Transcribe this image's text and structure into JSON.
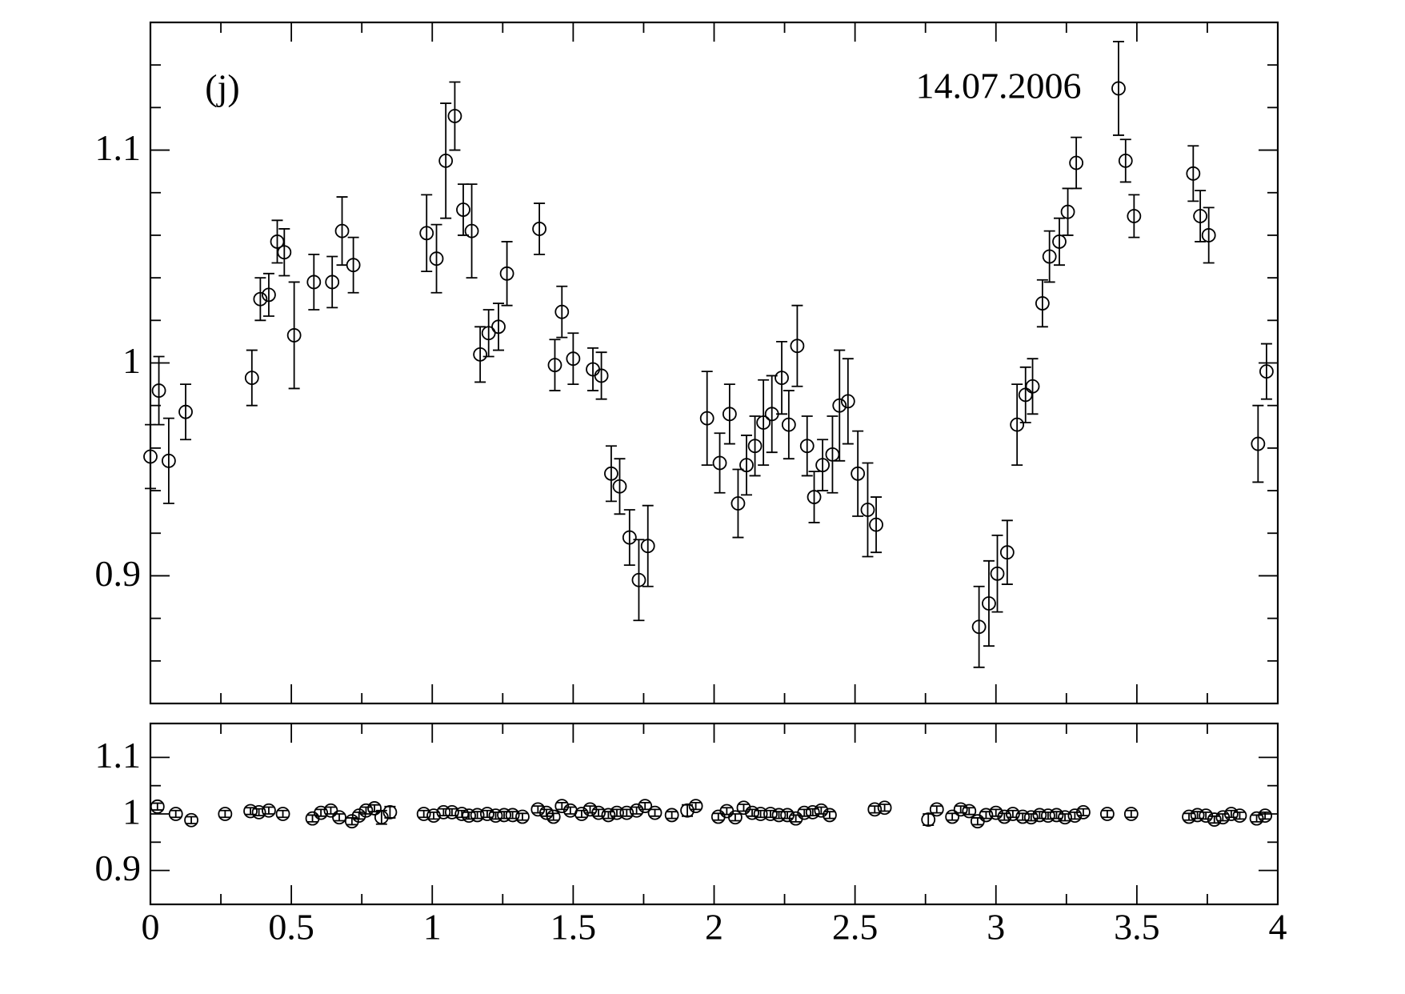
{
  "chart_data": [
    {
      "type": "scatter",
      "annotations": [
        "(j)",
        "14.07.2006"
      ],
      "xlim": [
        0,
        4
      ],
      "ylim": [
        0.84,
        1.16
      ],
      "xticks": [
        0,
        0.5,
        1,
        1.5,
        2,
        2.5,
        3,
        3.5,
        4
      ],
      "x_minor_ticks": [
        0.25,
        0.75,
        1.25,
        1.75,
        2.25,
        2.75,
        3.25,
        3.75
      ],
      "yticks": [
        0.9,
        1,
        1.1
      ],
      "y_minor_ticks": [
        0.86,
        0.88,
        0.92,
        0.94,
        0.96,
        0.98,
        1.02,
        1.04,
        1.06,
        1.08,
        1.12,
        1.14
      ],
      "color": "#000000",
      "series": [
        {
          "x": [
            0,
            0.03,
            0.065,
            0.125,
            0.36,
            0.39,
            0.42,
            0.45,
            0.475,
            0.51,
            0.58,
            0.645,
            0.68,
            0.72,
            0.98,
            1.015,
            1.048,
            1.08,
            1.11,
            1.14,
            1.17,
            1.2,
            1.235,
            1.265,
            1.38,
            1.435,
            1.46,
            1.5,
            1.57,
            1.6,
            1.635,
            1.665,
            1.7,
            1.733,
            1.765,
            1.975,
            2.02,
            2.055,
            2.085,
            2.115,
            2.145,
            2.175,
            2.205,
            2.24,
            2.265,
            2.295,
            2.33,
            2.355,
            2.385,
            2.42,
            2.445,
            2.475,
            2.51,
            2.545,
            2.575,
            2.94,
            2.975,
            3.005,
            3.04,
            3.075,
            3.105,
            3.13,
            3.165,
            3.19,
            3.225,
            3.255,
            3.285,
            3.435,
            3.46,
            3.49,
            3.7,
            3.725,
            3.755,
            3.93,
            3.96
          ],
          "values": [
            0.956,
            0.987,
            0.954,
            0.977,
            0.993,
            1.03,
            1.032,
            1.057,
            1.052,
            1.013,
            1.038,
            1.038,
            1.062,
            1.046,
            1.061,
            1.049,
            1.095,
            1.116,
            1.072,
            1.062,
            1.004,
            1.014,
            1.017,
            1.042,
            1.063,
            0.999,
            1.024,
            1.002,
            0.997,
            0.994,
            0.948,
            0.942,
            0.918,
            0.898,
            0.914,
            0.974,
            0.953,
            0.976,
            0.934,
            0.952,
            0.961,
            0.972,
            0.976,
            0.993,
            0.971,
            1.008,
            0.961,
            0.937,
            0.952,
            0.957,
            0.98,
            0.982,
            0.948,
            0.931,
            0.924,
            0.876,
            0.887,
            0.901,
            0.911,
            0.971,
            0.985,
            0.989,
            1.028,
            1.05,
            1.057,
            1.071,
            1.094,
            1.129,
            1.095,
            1.069,
            1.089,
            1.069,
            1.06,
            0.962,
            0.996
          ],
          "errors": [
            0.015,
            0.016,
            0.02,
            0.013,
            0.013,
            0.01,
            0.01,
            0.01,
            0.011,
            0.025,
            0.013,
            0.012,
            0.016,
            0.013,
            0.018,
            0.016,
            0.027,
            0.016,
            0.012,
            0.022,
            0.013,
            0.011,
            0.011,
            0.015,
            0.012,
            0.012,
            0.012,
            0.012,
            0.01,
            0.011,
            0.013,
            0.013,
            0.013,
            0.019,
            0.019,
            0.022,
            0.014,
            0.014,
            0.016,
            0.014,
            0.014,
            0.02,
            0.018,
            0.017,
            0.016,
            0.019,
            0.014,
            0.012,
            0.012,
            0.018,
            0.026,
            0.02,
            0.02,
            0.022,
            0.013,
            0.019,
            0.02,
            0.018,
            0.015,
            0.019,
            0.013,
            0.013,
            0.011,
            0.012,
            0.011,
            0.011,
            0.012,
            0.022,
            0.01,
            0.01,
            0.013,
            0.012,
            0.013,
            0.018,
            0.013
          ]
        }
      ]
    },
    {
      "type": "scatter",
      "xlim": [
        0,
        4
      ],
      "ylim": [
        0.84,
        1.16
      ],
      "xticks": [
        0,
        0.5,
        1,
        1.5,
        2,
        2.5,
        3,
        3.5,
        4
      ],
      "x_minor_ticks": [
        0.25,
        0.75,
        1.25,
        1.75,
        2.25,
        2.75,
        3.25,
        3.75
      ],
      "yticks": [
        0.9,
        1,
        1.1
      ],
      "y_minor_ticks": [
        0.95,
        1.05
      ],
      "color": "#000000",
      "series": [
        {
          "x": [
            0.025,
            0.09,
            0.145,
            0.265,
            0.355,
            0.385,
            0.42,
            0.47,
            0.575,
            0.605,
            0.64,
            0.67,
            0.715,
            0.74,
            0.765,
            0.795,
            0.82,
            0.85,
            0.97,
            1.005,
            1.04,
            1.07,
            1.105,
            1.13,
            1.16,
            1.195,
            1.225,
            1.255,
            1.285,
            1.32,
            1.375,
            1.405,
            1.43,
            1.46,
            1.49,
            1.53,
            1.56,
            1.59,
            1.625,
            1.655,
            1.69,
            1.725,
            1.755,
            1.79,
            1.85,
            1.905,
            1.935,
            2.015,
            2.045,
            2.075,
            2.105,
            2.135,
            2.165,
            2.2,
            2.23,
            2.26,
            2.29,
            2.32,
            2.35,
            2.38,
            2.41,
            2.57,
            2.605,
            2.76,
            2.79,
            2.845,
            2.875,
            2.905,
            2.935,
            2.965,
            3,
            3.03,
            3.06,
            3.095,
            3.125,
            3.155,
            3.185,
            3.215,
            3.245,
            3.28,
            3.31,
            3.395,
            3.48,
            3.685,
            3.715,
            3.745,
            3.775,
            3.805,
            3.835,
            3.865,
            3.925,
            3.955
          ],
          "values": [
            1.013,
            1,
            0.989,
            1,
            1.005,
            1.003,
            1.006,
            1,
            0.992,
            1.002,
            1.006,
            0.994,
            0.987,
            0.997,
            1.006,
            1.01,
            0.994,
            1.003,
            1,
            0.997,
            1.003,
            1.003,
            1,
            0.997,
            0.998,
            1,
            0.997,
            0.998,
            0.998,
            0.995,
            1.008,
            1.002,
            0.995,
            1.014,
            1.006,
            1,
            1.008,
            1.002,
            0.998,
            1.002,
            1.002,
            1.006,
            1.014,
            1.002,
            0.998,
            1.006,
            1.014,
            0.995,
            1.005,
            0.994,
            1.011,
            1.002,
            1,
            1,
            0.998,
            0.998,
            0.992,
            1.002,
            1.003,
            1.006,
            0.998,
            1.008,
            1.011,
            0.99,
            1.008,
            0.995,
            1.008,
            1.005,
            0.987,
            0.998,
            1.002,
            0.995,
            1,
            0.995,
            0.994,
            0.998,
            0.997,
            0.998,
            0.994,
            0.997,
            1.003,
            1,
            1,
            0.995,
            0.998,
            0.997,
            0.99,
            0.994,
            1,
            0.997,
            0.992,
            0.997
          ],
          "errors": [
            0.006,
            0.006,
            0.006,
            0.006,
            0.006,
            0.006,
            0.006,
            0.006,
            0.006,
            0.006,
            0.006,
            0.006,
            0.006,
            0.006,
            0.006,
            0.006,
            0.012,
            0.01,
            0.006,
            0.006,
            0.006,
            0.006,
            0.006,
            0.006,
            0.006,
            0.006,
            0.006,
            0.006,
            0.006,
            0.006,
            0.006,
            0.006,
            0.006,
            0.006,
            0.006,
            0.006,
            0.006,
            0.006,
            0.006,
            0.006,
            0.006,
            0.006,
            0.006,
            0.006,
            0.006,
            0.01,
            0.006,
            0.006,
            0.006,
            0.006,
            0.006,
            0.006,
            0.006,
            0.006,
            0.006,
            0.006,
            0.006,
            0.006,
            0.006,
            0.006,
            0.006,
            0.006,
            0.006,
            0.01,
            0.006,
            0.006,
            0.006,
            0.006,
            0.006,
            0.006,
            0.006,
            0.006,
            0.006,
            0.006,
            0.006,
            0.006,
            0.006,
            0.006,
            0.006,
            0.006,
            0.006,
            0.006,
            0.006,
            0.006,
            0.006,
            0.006,
            0.006,
            0.006,
            0.006,
            0.006,
            0.006,
            0.006
          ]
        }
      ]
    }
  ]
}
